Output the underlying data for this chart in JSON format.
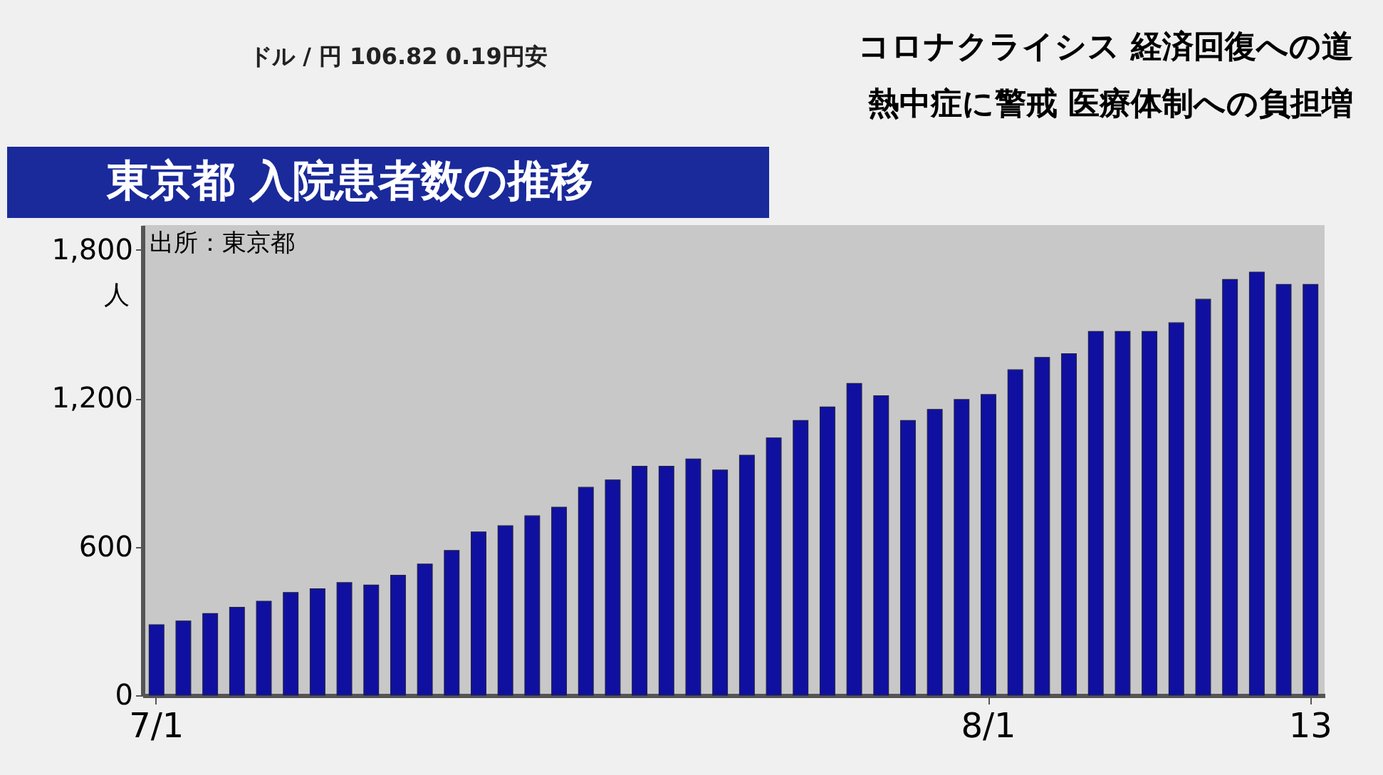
{
  "chart_data": {
    "type": "bar",
    "title": "東京都 入院患者数の推移",
    "ylabel": "人",
    "categories": [
      "7/1",
      null,
      null,
      null,
      null,
      null,
      null,
      null,
      null,
      null,
      null,
      null,
      null,
      null,
      null,
      null,
      null,
      null,
      null,
      null,
      null,
      null,
      null,
      null,
      null,
      null,
      null,
      null,
      null,
      null,
      null,
      "8/1",
      null,
      null,
      null,
      null,
      null,
      null,
      null,
      null,
      null,
      null,
      null,
      "13"
    ],
    "series": [
      {
        "color": "#1010a0",
        "values": [
          285,
          300,
          330,
          355,
          380,
          415,
          430,
          455,
          445,
          485,
          530,
          585,
          660,
          685,
          725,
          760,
          840,
          870,
          925,
          925,
          955,
          910,
          970,
          1040,
          1110,
          1165,
          1260,
          1210,
          1110,
          1155,
          1195,
          1215,
          1315,
          1365,
          1380,
          1470,
          1470,
          1470,
          1505,
          1600,
          1680,
          1710,
          1660,
          1660
        ]
      }
    ],
    "ylim": [
      0,
      1900
    ],
    "yticks": [
      0,
      600,
      {
        "value": 1200,
        "label": "1,200"
      },
      {
        "value": 1800,
        "label": "1,800"
      }
    ],
    "grid": false,
    "legend": false,
    "annotations": [
      "出所：東京都",
      "ドル / 円 106.82 0.19円安",
      "コロナクライシス 経済回復への道",
      "熱中症に警戒 医療体制への負担増"
    ]
  }
}
